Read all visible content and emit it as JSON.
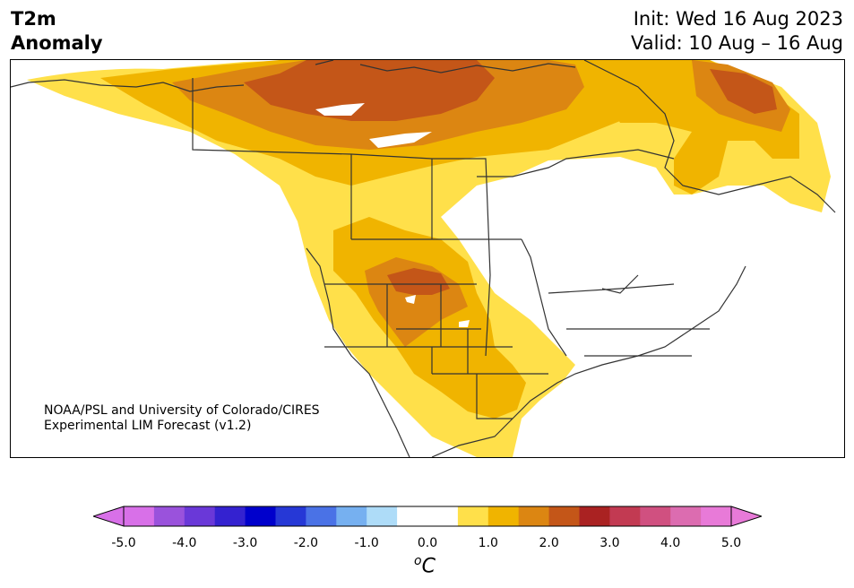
{
  "title": {
    "line1": "T2m",
    "line2": "Anomaly"
  },
  "header_right": {
    "init": "Init: Wed 16 Aug 2023",
    "valid": "Valid: 10 Aug – 16 Aug"
  },
  "credit": {
    "line1": "NOAA/PSL and University of Colorado/CIRES",
    "line2": "Experimental LIM Forecast (v1.2)"
  },
  "colorbar": {
    "unit_main": "C",
    "unit_super": "o",
    "tick_labels": [
      "-5.0",
      "-4.0",
      "-3.0",
      "-2.0",
      "-1.0",
      "0.0",
      "1.0",
      "2.0",
      "3.0",
      "4.0",
      "5.0"
    ],
    "colors": [
      "#d870e8",
      "#9a52dc",
      "#6a38d8",
      "#3422d0",
      "#0000cc",
      "#2638d6",
      "#4a72e6",
      "#76b0f0",
      "#aedcf8",
      "#ffffff",
      "#ffffff",
      "#ffe04a",
      "#f0b400",
      "#dc8612",
      "#c45618",
      "#aa2222",
      "#c23a52",
      "#d05080",
      "#dc6cb0",
      "#e87ad8"
    ]
  }
}
